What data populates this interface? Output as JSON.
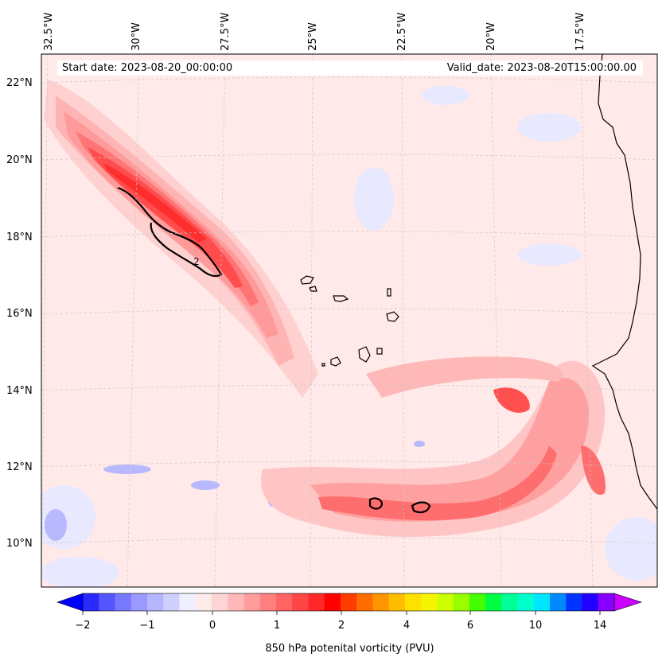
{
  "map": {
    "title_left": "Start date: 2023-08-20_00:00:00",
    "title_right": "Valid_date: 2023-08-20T15:00:00.00",
    "contour_label": "2",
    "lat_labels": [
      "22°N",
      "20°N",
      "18°N",
      "16°N",
      "14°N",
      "12°N",
      "10°N"
    ],
    "lon_labels": [
      "32.5°W",
      "30°W",
      "27.5°W",
      "25°W",
      "22.5°W",
      "20°W",
      "17.5°W"
    ]
  },
  "colorbar": {
    "label": "850 hPa potenital vorticity (PVU)",
    "ticks": [
      "−2",
      "−1",
      "0",
      "1",
      "2",
      "4",
      "6",
      "10",
      "14"
    ],
    "tick_values": [
      -2,
      -1,
      0,
      1,
      2,
      4,
      6,
      10,
      14
    ],
    "colors": [
      "#0000ff",
      "#2a2aff",
      "#5555ff",
      "#7878ff",
      "#9999ff",
      "#b6b6ff",
      "#d0d0ff",
      "#eeeeff",
      "#ffeaea",
      "#ffd4d4",
      "#ffb8b8",
      "#ff9c9c",
      "#ff7f7f",
      "#ff6363",
      "#ff4646",
      "#ff2828",
      "#ff0000",
      "#ff3c00",
      "#ff6c00",
      "#ff9500",
      "#ffbd00",
      "#ffe100",
      "#f5f500",
      "#ccff00",
      "#99ff00",
      "#44ff00",
      "#00ff44",
      "#00ff99",
      "#00ffcc",
      "#00e5ff",
      "#0088ff",
      "#0033ff",
      "#2200ff",
      "#8800ff",
      "#cc00ff"
    ]
  }
}
